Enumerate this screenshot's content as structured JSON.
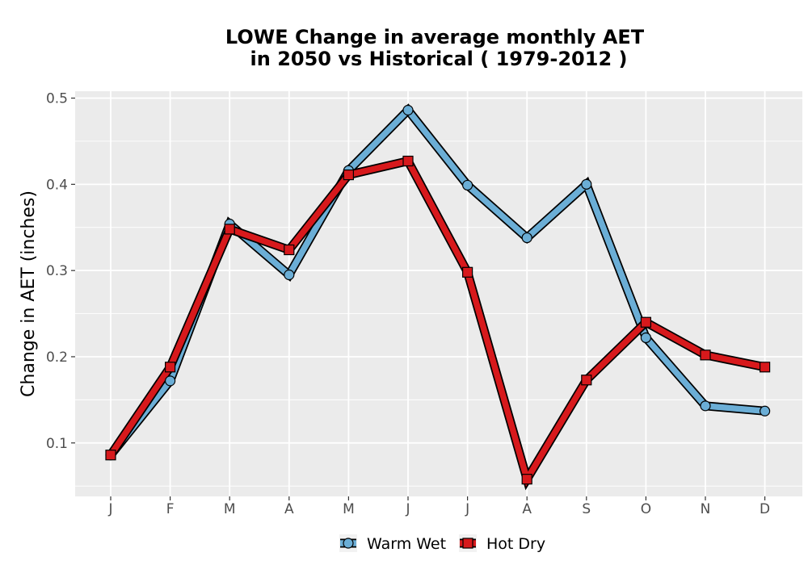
{
  "chart_data": {
    "type": "line",
    "title_line1": "LOWE  Change in average monthly AET",
    "title_line2": "in 2050 vs Historical ( 1979-2012 )",
    "ylabel": "Change in AET (inches)",
    "xlabel": "",
    "categories": [
      "J",
      "F",
      "M",
      "A",
      "M",
      "J",
      "J",
      "A",
      "S",
      "O",
      "N",
      "D"
    ],
    "ylim": [
      0.038,
      0.508
    ],
    "yticks": [
      0.1,
      0.2,
      0.3,
      0.4,
      0.5
    ],
    "ytick_labels": [
      "0.1",
      "0.2",
      "0.3",
      "0.4",
      "0.5"
    ],
    "grid": true,
    "legend_position": "bottom",
    "series": [
      {
        "name": "Warm Wet",
        "color": "#6baed6",
        "marker": "circle",
        "values": [
          0.086,
          0.172,
          0.354,
          0.295,
          0.416,
          0.486,
          0.399,
          0.338,
          0.4,
          0.222,
          0.143,
          0.137
        ]
      },
      {
        "name": "Hot Dry",
        "color": "#d7191c",
        "marker": "square",
        "values": [
          0.086,
          0.188,
          0.348,
          0.324,
          0.411,
          0.427,
          0.298,
          0.058,
          0.173,
          0.24,
          0.202,
          0.188
        ]
      }
    ]
  }
}
